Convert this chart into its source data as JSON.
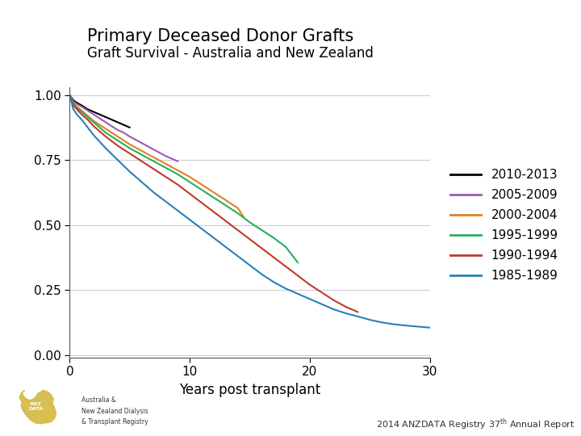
{
  "title": "Primary Deceased Donor Grafts",
  "subtitle": "Graft Survival - Australia and New Zealand",
  "xlabel": "Years post transplant",
  "xlim": [
    0,
    30
  ],
  "ylim": [
    -0.01,
    1.03
  ],
  "xticks": [
    0,
    10,
    20,
    30
  ],
  "yticks": [
    0.0,
    0.25,
    0.5,
    0.75,
    1.0
  ],
  "background_color": "#ffffff",
  "series": [
    {
      "label": "2010-2013",
      "color": "#000000",
      "x": [
        0,
        0.3,
        0.6,
        1,
        1.5,
        2,
        2.5,
        3,
        3.5,
        4,
        4.5,
        5
      ],
      "y": [
        1.0,
        0.98,
        0.97,
        0.96,
        0.945,
        0.935,
        0.925,
        0.915,
        0.905,
        0.895,
        0.885,
        0.875
      ]
    },
    {
      "label": "2005-2009",
      "color": "#9b59b6",
      "x": [
        0,
        0.3,
        0.6,
        1,
        1.5,
        2,
        2.5,
        3,
        3.5,
        4,
        4.5,
        5,
        6,
        7,
        8,
        9
      ],
      "y": [
        1.0,
        0.975,
        0.965,
        0.955,
        0.94,
        0.925,
        0.91,
        0.895,
        0.88,
        0.865,
        0.855,
        0.84,
        0.815,
        0.79,
        0.765,
        0.745
      ]
    },
    {
      "label": "2000-2004",
      "color": "#e67e22",
      "x": [
        0,
        0.3,
        0.6,
        1,
        1.5,
        2,
        2.5,
        3,
        3.5,
        4,
        4.5,
        5,
        6,
        7,
        8,
        9,
        10,
        11,
        12,
        13,
        14,
        14.5
      ],
      "y": [
        1.0,
        0.97,
        0.955,
        0.94,
        0.92,
        0.9,
        0.885,
        0.87,
        0.855,
        0.84,
        0.825,
        0.81,
        0.785,
        0.76,
        0.735,
        0.71,
        0.685,
        0.655,
        0.625,
        0.595,
        0.565,
        0.53
      ]
    },
    {
      "label": "1995-1999",
      "color": "#27ae60",
      "x": [
        0,
        0.3,
        0.6,
        1,
        1.5,
        2,
        2.5,
        3,
        4,
        5,
        6,
        7,
        8,
        9,
        10,
        11,
        12,
        13,
        14,
        15,
        16,
        17,
        18,
        19
      ],
      "y": [
        1.0,
        0.965,
        0.95,
        0.935,
        0.915,
        0.895,
        0.875,
        0.855,
        0.825,
        0.795,
        0.77,
        0.745,
        0.72,
        0.695,
        0.665,
        0.635,
        0.605,
        0.575,
        0.545,
        0.51,
        0.48,
        0.45,
        0.415,
        0.355
      ]
    },
    {
      "label": "1990-1994",
      "color": "#c0392b",
      "x": [
        0,
        0.3,
        0.6,
        1,
        1.5,
        2,
        2.5,
        3,
        4,
        5,
        6,
        7,
        8,
        9,
        10,
        11,
        12,
        13,
        14,
        15,
        16,
        17,
        18,
        19,
        20,
        21,
        22,
        23,
        24
      ],
      "y": [
        1.0,
        0.96,
        0.945,
        0.925,
        0.905,
        0.88,
        0.86,
        0.84,
        0.805,
        0.775,
        0.745,
        0.715,
        0.685,
        0.655,
        0.62,
        0.585,
        0.55,
        0.515,
        0.48,
        0.445,
        0.41,
        0.375,
        0.34,
        0.305,
        0.27,
        0.24,
        0.21,
        0.185,
        0.165
      ]
    },
    {
      "label": "1985-1989",
      "color": "#2980b9",
      "x": [
        0,
        0.3,
        0.6,
        1,
        1.5,
        2,
        2.5,
        3,
        4,
        5,
        6,
        7,
        8,
        9,
        10,
        11,
        12,
        13,
        14,
        15,
        16,
        17,
        18,
        19,
        20,
        21,
        22,
        23,
        24,
        25,
        26,
        27,
        28,
        29,
        30
      ],
      "y": [
        1.0,
        0.945,
        0.925,
        0.905,
        0.875,
        0.845,
        0.82,
        0.795,
        0.75,
        0.705,
        0.665,
        0.625,
        0.59,
        0.555,
        0.52,
        0.485,
        0.45,
        0.415,
        0.38,
        0.345,
        0.31,
        0.28,
        0.255,
        0.235,
        0.215,
        0.195,
        0.175,
        0.16,
        0.148,
        0.135,
        0.125,
        0.118,
        0.113,
        0.109,
        0.105
      ]
    }
  ],
  "legend_labels": [
    "2010-2013",
    "2005-2009",
    "2000-2004",
    "1995-1999",
    "1990-1994",
    "1985-1989"
  ],
  "title_fontsize": 15,
  "subtitle_fontsize": 12,
  "axis_fontsize": 12,
  "tick_fontsize": 11,
  "legend_fontsize": 11
}
